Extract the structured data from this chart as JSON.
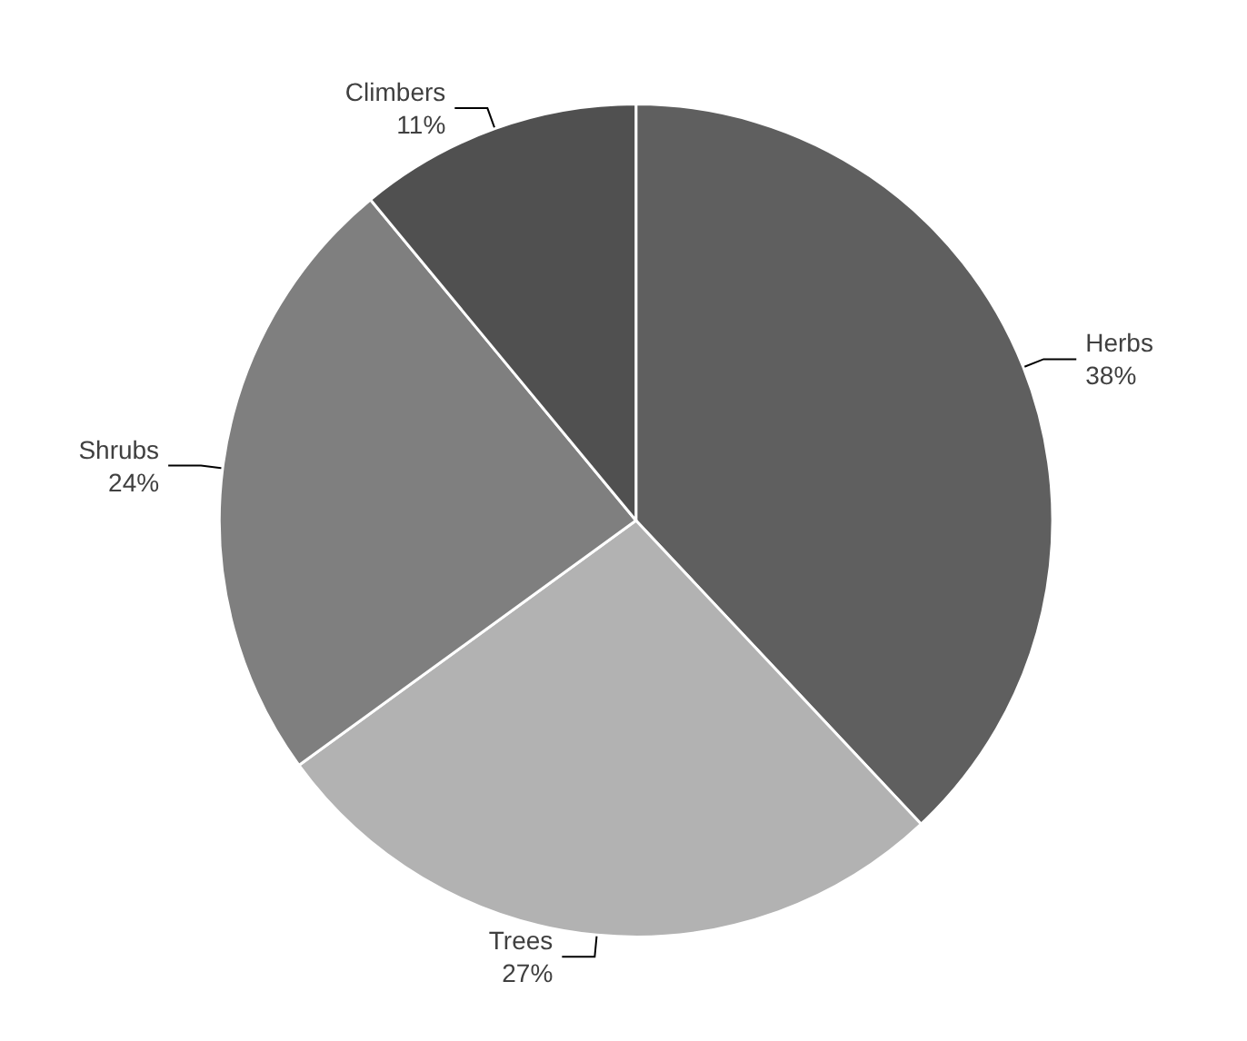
{
  "chart_data": {
    "type": "pie",
    "categories": [
      "Herbs",
      "Trees",
      "Shrubs",
      "Climbers"
    ],
    "values": [
      38,
      27,
      24,
      11
    ],
    "colors": [
      "#5f5f5f",
      "#b2b2b2",
      "#7f7f7f",
      "#505050"
    ],
    "value_labels": [
      "38%",
      "27%",
      "24%",
      "11%"
    ],
    "legend": false
  }
}
